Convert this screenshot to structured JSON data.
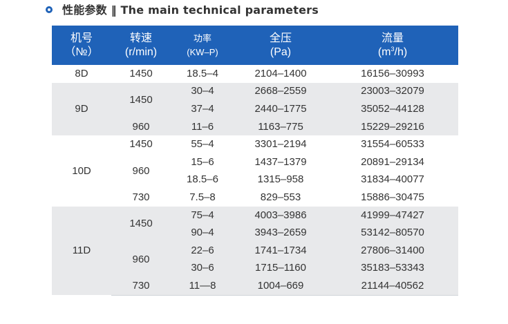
{
  "heading": {
    "text": "性能参数 ‖ The main technical parameters",
    "bullet_icon": "ring-bullet-icon",
    "accent_color": "#1f62b8"
  },
  "table": {
    "header_bg": "#1f62b8",
    "stripe_bg": "#e8e9eb",
    "columns": [
      {
        "title": "机号",
        "unit": "（№）"
      },
      {
        "title": "转速",
        "unit": "(r/min)"
      },
      {
        "title": "功率",
        "unit": "(KW–P)"
      },
      {
        "title": "全压",
        "unit": "(Pa)"
      },
      {
        "title": "流量",
        "unit_pre": "(m",
        "unit_sup": "3",
        "unit_post": "/h)"
      }
    ],
    "groups": [
      {
        "model": "8D",
        "rows": [
          {
            "speed": "1450",
            "power": "18.5–4",
            "pressure": "2104–1400",
            "flow": "16156–30993"
          }
        ]
      },
      {
        "model": "9D",
        "rows": [
          {
            "speed": "1450",
            "power": "30–4",
            "pressure": "2668–2559",
            "flow": "23003–32079"
          },
          {
            "speed": "",
            "power": "37–4",
            "pressure": "2440–1775",
            "flow": "35052–44128"
          },
          {
            "speed": "960",
            "power": "11–6",
            "pressure": "1163–775",
            "flow": "15229–29216"
          }
        ]
      },
      {
        "model": "10D",
        "rows": [
          {
            "speed": "1450",
            "power": "55–4",
            "pressure": "3301–2194",
            "flow": "31554–60533"
          },
          {
            "speed": "960",
            "power": "15–6",
            "pressure": "1437–1379",
            "flow": "20891–29134"
          },
          {
            "speed": "",
            "power": "18.5–6",
            "pressure": "1315–958",
            "flow": "31834–40077"
          },
          {
            "speed": "730",
            "power": "7.5–8",
            "pressure": "829–553",
            "flow": "15886–30475"
          }
        ]
      },
      {
        "model": "11D",
        "rows": [
          {
            "speed": "1450",
            "power": "75–4",
            "pressure": "4003–3986",
            "flow": "41999–47427"
          },
          {
            "speed": "",
            "power": "90–4",
            "pressure": "3943–2659",
            "flow": "53142–80570"
          },
          {
            "speed": "960",
            "power": "22–6",
            "pressure": "1741–1734",
            "flow": "27806–31400"
          },
          {
            "speed": "",
            "power": "30–6",
            "pressure": "1715–1160",
            "flow": "35183–53343"
          },
          {
            "speed": "730",
            "power": "11—8",
            "pressure": "1004–669",
            "flow": "21144–40562"
          }
        ]
      }
    ]
  }
}
